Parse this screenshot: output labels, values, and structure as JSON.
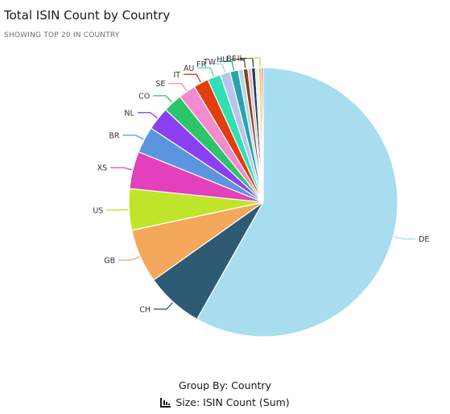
{
  "header": {
    "title": "Total ISIN Count by Country",
    "subtitle": "SHOWING TOP 20 IN COUNTRY"
  },
  "footer": {
    "group_by": "Group By: Country",
    "size_label": "Size: ISIN Count (Sum)",
    "size_icon": "sort-bars-icon"
  },
  "chart_data": {
    "type": "pie",
    "title": "Total ISIN Count by Country",
    "subtitle": "SHOWING TOP 20 IN COUNTRY",
    "value_unit": "percent of total",
    "slices": [
      {
        "label": "DE",
        "value": 58.5,
        "color": "#a8ddf0"
      },
      {
        "label": "CH",
        "value": 7.0,
        "color": "#2e5a74"
      },
      {
        "label": "GB",
        "value": 6.5,
        "color": "#f4a85c"
      },
      {
        "label": "US",
        "value": 5.0,
        "color": "#bfe52a"
      },
      {
        "label": "XS",
        "value": 4.5,
        "color": "#e43fbc"
      },
      {
        "label": "BR",
        "value": 3.2,
        "color": "#5b95e0"
      },
      {
        "label": "NL",
        "value": 2.8,
        "color": "#8b3ff2"
      },
      {
        "label": "CO",
        "value": 2.3,
        "color": "#2ec46a"
      },
      {
        "label": "SE",
        "value": 2.1,
        "color": "#f28ccf"
      },
      {
        "label": "IT",
        "value": 1.8,
        "color": "#e23d0e"
      },
      {
        "label": "AU",
        "value": 1.6,
        "color": "#2fe0b4"
      },
      {
        "label": "FR",
        "value": 1.2,
        "color": "#b9c4ea"
      },
      {
        "label": "TW",
        "value": 1.0,
        "color": "#2aa3aa"
      },
      {
        "label": "",
        "value": 0.6,
        "color": "#b3d6ee"
      },
      {
        "label": "HU",
        "value": 0.55,
        "color": "#7a4a18"
      },
      {
        "label": "",
        "value": 0.45,
        "color": "#f0b2d4"
      },
      {
        "label": "BE",
        "value": 0.45,
        "color": "#1e3e5a"
      },
      {
        "label": "",
        "value": 0.4,
        "color": "#d9eef8"
      },
      {
        "label": "IL",
        "value": 0.35,
        "color": "#f3c73a"
      },
      {
        "label": "",
        "value": 0.2,
        "color": "#c828d8"
      }
    ]
  }
}
